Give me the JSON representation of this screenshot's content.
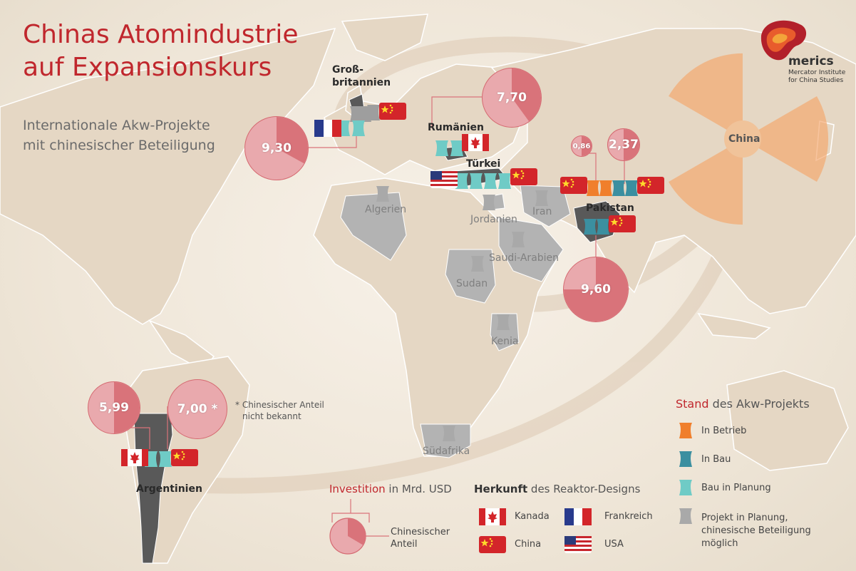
{
  "title": {
    "line1": "Chinas Atomindustrie",
    "line2": "auf Expansionskurs"
  },
  "subtitle": {
    "line1": "Internationale Akw-Projekte",
    "line2": "mit chinesischer Beteiligung"
  },
  "logo": {
    "word": "merics",
    "line1": "Mercator Institute",
    "line2": "for China Studies"
  },
  "colors": {
    "accent": "#c0272d",
    "in_betrieb": "#f07f2c",
    "in_bau": "#3b8fa0",
    "bau_in_planung": "#6fcbc6",
    "projekt_in_planung": "#9e9e9e",
    "bubble_fill": "#e9a9ad",
    "bubble_share": "#d9737a"
  },
  "countries": {
    "gb_line1": "Groß-",
    "gb_line2": "britannien",
    "rumaenien": "Rumänien",
    "tuerkei": "Türkei",
    "pakistan": "Pakistan",
    "argentinien": "Argentinien",
    "china": "China",
    "algerien": "Algerien",
    "jordanien": "Jordanien",
    "iran": "Iran",
    "saudi_arabien": "Saudi-Arabien",
    "sudan": "Sudan",
    "kenia": "Kenia",
    "suedafrika": "Südafrika"
  },
  "investments": [
    {
      "id": "gb",
      "label": "9,30",
      "value": 9.3,
      "share": 0.33
    },
    {
      "id": "rumaenien",
      "label": "7,70",
      "value": 7.7,
      "share": 0.4
    },
    {
      "id": "pakistan_small",
      "label": "0,86",
      "value": 0.86,
      "share": 0.5
    },
    {
      "id": "pakistan_mid",
      "label": "2,37",
      "value": 2.37,
      "share": 0.5
    },
    {
      "id": "pakistan_large",
      "label": "9,60",
      "value": 9.6,
      "share": 0.75
    },
    {
      "id": "argentinien_1",
      "label": "5,99",
      "value": 5.99,
      "share": 0.5
    },
    {
      "id": "argentinien_2",
      "label": "7,00 *",
      "value": 7.0,
      "share": 0.0
    }
  ],
  "note": {
    "line1": "* Chinesischer Anteil",
    "line2": "nicht bekannt"
  },
  "legend_status": {
    "title_bold": "Stand",
    "title_rest": " des Akw-Projekts",
    "in_betrieb": "In Betrieb",
    "in_bau": "In Bau",
    "bau_in_planung": "Bau in Planung",
    "projekt_line1": "Projekt in Planung,",
    "projekt_line2": "chinesische Beteiligung",
    "projekt_line3": "möglich"
  },
  "legend_investition": {
    "title_bold": "Investition",
    "title_rest": " in Mrd. USD",
    "share_line1": "Chinesischer",
    "share_line2": "Anteil"
  },
  "legend_herkunft": {
    "title_bold": "Herkunft",
    "title_rest": " des Reaktor-Designs",
    "kanada": "Kanada",
    "frankreich": "Frankreich",
    "china": "China",
    "usa": "USA"
  }
}
